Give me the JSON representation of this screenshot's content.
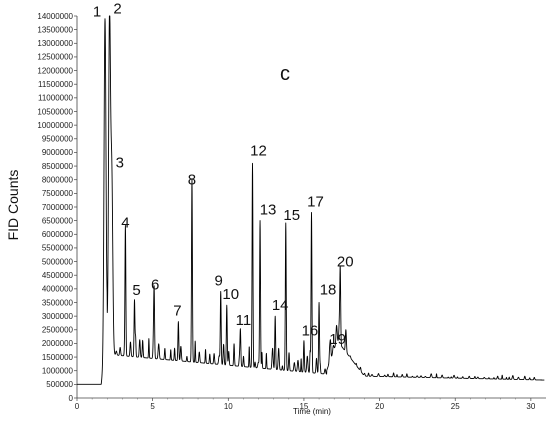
{
  "chart_data": {
    "type": "line",
    "panel_label": "c",
    "xlabel": "Time (min)",
    "ylabel": "FID Counts",
    "xlim": [
      0,
      31
    ],
    "ylim": [
      0,
      14000000
    ],
    "x_ticks": [
      0,
      5,
      10,
      15,
      20,
      25,
      30
    ],
    "y_ticks": [
      0,
      500000,
      1000000,
      1500000,
      2000000,
      2500000,
      3000000,
      3500000,
      4000000,
      4500000,
      5000000,
      5500000,
      6000000,
      6500000,
      7000000,
      7500000,
      8000000,
      8500000,
      9000000,
      9500000,
      10000000,
      10500000,
      11000000,
      11500000,
      12000000,
      12500000,
      13000000,
      13500000,
      14000000
    ],
    "y_tick_labels": [
      "0",
      "500000",
      "1000000",
      "1500000",
      "2000000",
      "2500000",
      "3000000",
      "3500000",
      "4000000",
      "4500000",
      "5000000",
      "5500000",
      "6000000",
      "6500000",
      "7000000",
      "7500000",
      "8000000",
      "8500000",
      "9000000",
      "9500000",
      "10000000",
      "10500000",
      "11000000",
      "11500000",
      "12000000",
      "12500000",
      "13000000",
      "13500000",
      "14000000"
    ],
    "peaks": [
      {
        "label": "1",
        "time": 1.85,
        "height": 13900000
      },
      {
        "label": "2",
        "time": 2.15,
        "height": 13950000
      },
      {
        "label": "3",
        "time": 2.3,
        "height": 8000000
      },
      {
        "label": "4",
        "time": 3.2,
        "height": 6100000
      },
      {
        "label": "5",
        "time": 3.8,
        "height": 3600000
      },
      {
        "label": "6",
        "time": 5.1,
        "height": 3750000
      },
      {
        "label": "7",
        "time": 6.7,
        "height": 2800000
      },
      {
        "label": "8",
        "time": 7.6,
        "height": 7600000
      },
      {
        "label": "9",
        "time": 9.5,
        "height": 3900000
      },
      {
        "label": "10",
        "time": 9.9,
        "height": 3400000
      },
      {
        "label": "11",
        "time": 10.8,
        "height": 2500000
      },
      {
        "label": "12",
        "time": 11.6,
        "height": 8600000
      },
      {
        "label": "13",
        "time": 12.1,
        "height": 6500000
      },
      {
        "label": "14",
        "time": 13.1,
        "height": 3000000
      },
      {
        "label": "15",
        "time": 13.8,
        "height": 6300000
      },
      {
        "label": "16",
        "time": 15.0,
        "height": 2100000
      },
      {
        "label": "17",
        "time": 15.5,
        "height": 6800000
      },
      {
        "label": "18",
        "time": 16.0,
        "height": 3500000
      },
      {
        "label": "19",
        "time": 16.7,
        "height": 1800000
      },
      {
        "label": "20",
        "time": 17.4,
        "height": 4600000
      }
    ],
    "baseline_start": 500000,
    "line_color": "#000000"
  }
}
